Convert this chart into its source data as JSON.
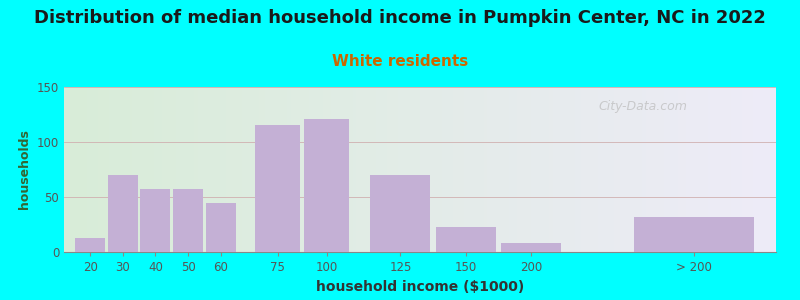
{
  "title": "Distribution of median household income in Pumpkin Center, NC in 2022",
  "subtitle": "White residents",
  "xlabel": "household income ($1000)",
  "ylabel": "households",
  "title_fontsize": 13,
  "subtitle_fontsize": 11,
  "label_fontsize": 10,
  "ylabel_fontsize": 9,
  "bar_color": "#C4B0D5",
  "background_outer": "#00FFFF",
  "background_inner_left": "#D8EDD8",
  "background_inner_right": "#F0EEF8",
  "ylim": [
    0,
    150
  ],
  "yticks": [
    0,
    50,
    100,
    150
  ],
  "categories": [
    "20",
    "30",
    "40",
    "50",
    "60",
    "75",
    "100",
    "125",
    "150",
    "200",
    "> 200"
  ],
  "values": [
    13,
    70,
    57,
    57,
    45,
    115,
    121,
    70,
    23,
    8,
    32
  ],
  "bar_positions": [
    0,
    1,
    2,
    3,
    4,
    5.5,
    7,
    9,
    11,
    13,
    17
  ],
  "bar_width": [
    1,
    1,
    1,
    1,
    1,
    1.5,
    1.5,
    2,
    2,
    2,
    4
  ],
  "watermark": "City-Data.com",
  "subtitle_color": "#CC6600",
  "title_color": "#1a1a1a",
  "ylabel_color": "#336633",
  "xlabel_color": "#333333",
  "tick_color": "#555555",
  "grid_color": "#D0B0B0",
  "spine_color": "#888888"
}
